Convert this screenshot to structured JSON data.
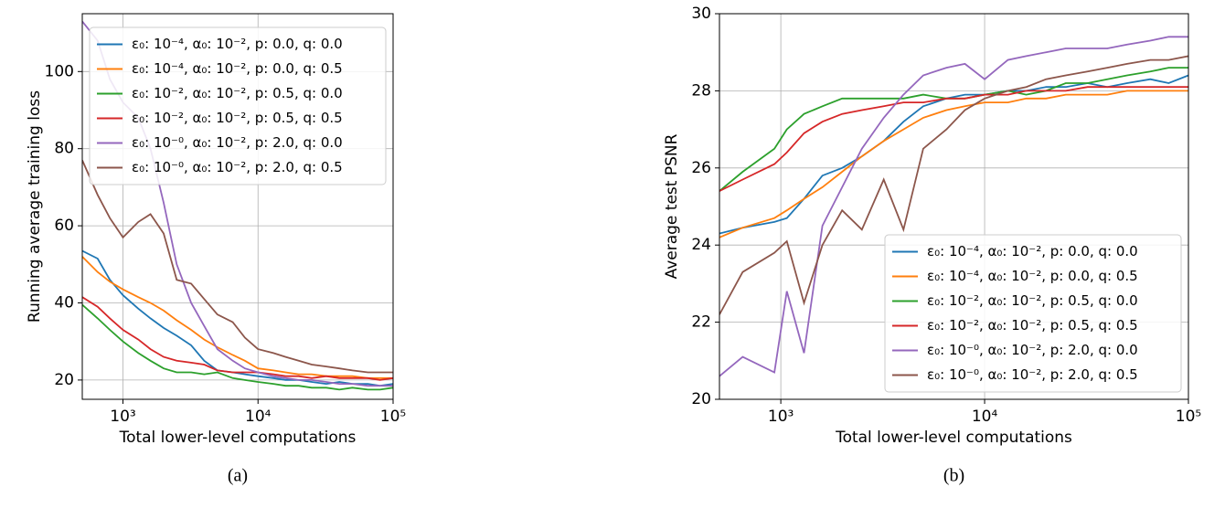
{
  "chart_data": [
    {
      "type": "line",
      "caption": "(a)",
      "xlabel": "Total lower-level computations",
      "ylabel": "Running average training loss",
      "log_x": true,
      "grid": true,
      "legend": "upper right",
      "xlim": [
        500,
        100000
      ],
      "ylim": [
        15,
        115
      ],
      "xticks": [
        {
          "value": 1000,
          "label": "10³"
        },
        {
          "value": 10000,
          "label": "10⁴"
        },
        {
          "value": 100000,
          "label": "10⁵"
        }
      ],
      "yticks": [
        20,
        40,
        60,
        80,
        100
      ],
      "x": [
        500,
        650,
        800,
        1000,
        1300,
        1600,
        2000,
        2500,
        3200,
        4000,
        5000,
        6500,
        8000,
        10000,
        13000,
        16000,
        20000,
        25000,
        32000,
        40000,
        50000,
        65000,
        80000,
        100000
      ],
      "series": [
        {
          "name": "ε₀: 10⁻⁴, α₀: 10⁻², p: 0.0, q: 0.0",
          "color": "#1f77b4",
          "values": [
            53.5,
            51.5,
            46,
            42,
            38.5,
            36,
            33.5,
            31.5,
            29,
            25,
            22.5,
            22,
            21.5,
            21,
            20.5,
            20,
            20,
            19.5,
            19,
            19.5,
            19,
            19,
            18.5,
            19
          ]
        },
        {
          "name": "ε₀: 10⁻⁴, α₀: 10⁻², p: 0.0, q: 0.5",
          "color": "#ff7f0e",
          "values": [
            52,
            48,
            45.5,
            43.5,
            41.5,
            40,
            38,
            35.5,
            33,
            30.5,
            28.5,
            26.5,
            25,
            23,
            22.5,
            22,
            21.5,
            21.5,
            21,
            21,
            21,
            20.5,
            20.5,
            20.5
          ]
        },
        {
          "name": "ε₀: 10⁻², α₀: 10⁻², p: 0.5, q: 0.0",
          "color": "#2ca02c",
          "values": [
            39.5,
            36,
            33,
            30,
            27,
            25,
            23,
            22,
            22,
            21.5,
            22,
            20.5,
            20,
            19.5,
            19,
            18.5,
            18.5,
            18,
            18,
            17.5,
            18,
            17.5,
            17.5,
            18
          ]
        },
        {
          "name": "ε₀: 10⁻², α₀: 10⁻², p: 0.5, q: 0.5",
          "color": "#d62728",
          "values": [
            41.5,
            39,
            36,
            33,
            30.5,
            28,
            26,
            25,
            24.5,
            24,
            22.5,
            22,
            22,
            22,
            21.5,
            21,
            21,
            20.5,
            21,
            20.5,
            20.5,
            20.5,
            20,
            20.5
          ]
        },
        {
          "name": "ε₀: 10⁻⁰, α₀: 10⁻², p: 2.0, q: 0.0",
          "color": "#9467bd",
          "values": [
            113,
            108,
            98,
            92,
            88,
            80,
            66,
            50,
            40,
            34,
            28,
            25,
            23,
            22,
            21,
            20.5,
            20,
            20,
            19.5,
            19,
            19,
            18.5,
            18.5,
            18.5
          ]
        },
        {
          "name": "ε₀: 10⁻⁰, α₀: 10⁻², p: 2.0, q: 0.5",
          "color": "#8c564b",
          "values": [
            77,
            68,
            62,
            57,
            61,
            63,
            58,
            46,
            45,
            41,
            37,
            35,
            31,
            28,
            27,
            26,
            25,
            24,
            23.5,
            23,
            22.5,
            22,
            22,
            22
          ]
        }
      ]
    },
    {
      "type": "line",
      "caption": "(b)",
      "xlabel": "Total lower-level computations",
      "ylabel": "Average test PSNR",
      "log_x": true,
      "grid": true,
      "legend": "lower right",
      "xlim": [
        500,
        100000
      ],
      "ylim": [
        20,
        30
      ],
      "xticks": [
        {
          "value": 1000,
          "label": "10³"
        },
        {
          "value": 10000,
          "label": "10⁴"
        },
        {
          "value": 100000,
          "label": "10⁵"
        }
      ],
      "yticks": [
        20,
        22,
        24,
        26,
        28,
        30
      ],
      "x": [
        500,
        650,
        930,
        1070,
        1300,
        1600,
        2000,
        2500,
        3200,
        4000,
        5000,
        6500,
        8000,
        10000,
        13000,
        16000,
        20000,
        25000,
        32000,
        40000,
        50000,
        65000,
        80000,
        100000
      ],
      "series": [
        {
          "name": "ε₀: 10⁻⁴, α₀: 10⁻², p: 0.0, q: 0.0",
          "color": "#1f77b4",
          "values": [
            24.3,
            24.45,
            24.6,
            24.7,
            25.2,
            25.8,
            26.0,
            26.3,
            26.7,
            27.2,
            27.6,
            27.8,
            27.9,
            27.9,
            28.0,
            28.0,
            28.1,
            28.1,
            28.2,
            28.1,
            28.2,
            28.3,
            28.2,
            28.4
          ]
        },
        {
          "name": "ε₀: 10⁻⁴, α₀: 10⁻², p: 0.0, q: 0.5",
          "color": "#ff7f0e",
          "values": [
            24.2,
            24.45,
            24.7,
            24.9,
            25.2,
            25.5,
            25.9,
            26.3,
            26.7,
            27.0,
            27.3,
            27.5,
            27.6,
            27.7,
            27.7,
            27.8,
            27.8,
            27.9,
            27.9,
            27.9,
            28.0,
            28.0,
            28.0,
            28.0
          ]
        },
        {
          "name": "ε₀: 10⁻², α₀: 10⁻², p: 0.5, q: 0.0",
          "color": "#2ca02c",
          "values": [
            25.4,
            25.9,
            26.5,
            27.0,
            27.4,
            27.6,
            27.8,
            27.8,
            27.8,
            27.8,
            27.9,
            27.8,
            27.8,
            27.9,
            28.0,
            27.9,
            28.0,
            28.2,
            28.2,
            28.3,
            28.4,
            28.5,
            28.6,
            28.6
          ]
        },
        {
          "name": "ε₀: 10⁻², α₀: 10⁻², p: 0.5, q: 0.5",
          "color": "#d62728",
          "values": [
            25.4,
            25.7,
            26.1,
            26.4,
            26.9,
            27.2,
            27.4,
            27.5,
            27.6,
            27.7,
            27.7,
            27.8,
            27.8,
            27.9,
            27.9,
            28.0,
            28.0,
            28.0,
            28.1,
            28.1,
            28.1,
            28.1,
            28.1,
            28.1
          ]
        },
        {
          "name": "ε₀: 10⁻⁰, α₀: 10⁻², p: 2.0, q: 0.0",
          "color": "#9467bd",
          "values": [
            20.6,
            21.1,
            20.7,
            22.8,
            21.2,
            24.5,
            25.5,
            26.5,
            27.3,
            27.9,
            28.4,
            28.6,
            28.7,
            28.3,
            28.8,
            28.9,
            29.0,
            29.1,
            29.1,
            29.1,
            29.2,
            29.3,
            29.4,
            29.4
          ]
        },
        {
          "name": "ε₀: 10⁻⁰, α₀: 10⁻², p: 2.0, q: 0.5",
          "color": "#8c564b",
          "values": [
            22.2,
            23.3,
            23.8,
            24.1,
            22.5,
            24.0,
            24.9,
            24.4,
            25.7,
            24.4,
            26.5,
            27.0,
            27.5,
            27.8,
            28.0,
            28.1,
            28.3,
            28.4,
            28.5,
            28.6,
            28.7,
            28.8,
            28.8,
            28.9
          ]
        }
      ]
    }
  ]
}
